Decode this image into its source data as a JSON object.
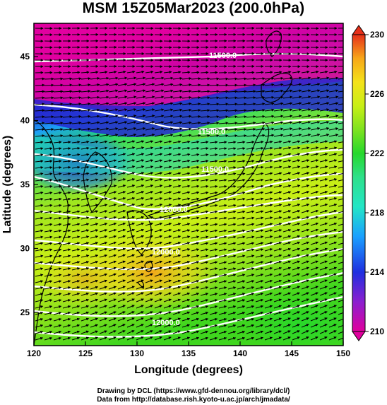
{
  "title": "MSM 15Z05Mar2023 (200.0hPa)",
  "map": {
    "xlabel": "Longitude (degrees)",
    "ylabel": "Latitude  (degrees)",
    "x_ticks": [
      "120",
      "125",
      "130",
      "135",
      "140",
      "145",
      "150"
    ],
    "y_ticks": [
      "25",
      "30",
      "35",
      "40",
      "45"
    ],
    "xlim": [
      120,
      150
    ],
    "ylim": [
      22.4,
      47.6
    ],
    "contour_labels": [
      "11500.0",
      "11500.0",
      "11500.0",
      "12000.0",
      "12000.0",
      "12000.0"
    ],
    "colorbar": {
      "ticks": [
        "210",
        "214",
        "218",
        "222",
        "226",
        "230"
      ],
      "range": [
        210,
        230
      ],
      "colors": [
        "#e0009e",
        "#8b1fcf",
        "#1f2fe0",
        "#1aa0ff",
        "#23e6c6",
        "#2ee08a",
        "#26d82c",
        "#7ee21f",
        "#c8ef16",
        "#f4e21a",
        "#f7a719",
        "#f06a18",
        "#e6301a"
      ]
    }
  },
  "credits": {
    "line1": "Drawing by DCL (https://www.gfd-dennou.org/library/dcl/)",
    "line2": "Data from http://database.rish.kyoto-u.ac.jp/arch/jmadata/"
  }
}
